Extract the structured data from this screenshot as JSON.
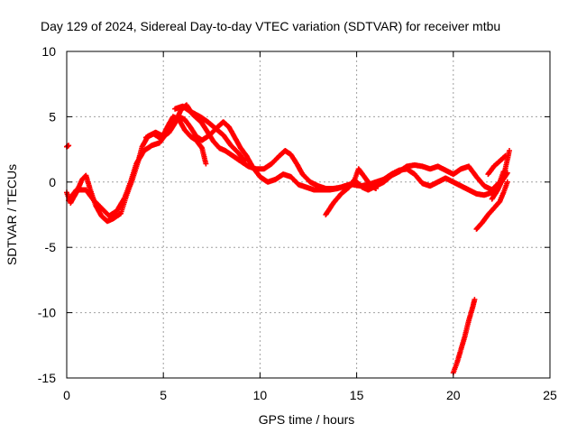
{
  "chart_data": {
    "type": "scatter",
    "title": "Day 129 of 2024, Sidereal Day-to-day VTEC variation (SDTVAR) for receiver mtbu",
    "xlabel": "GPS time / hours",
    "ylabel": "SDTVAR / TECUs",
    "xlim": [
      0,
      25
    ],
    "ylim": [
      -15,
      10
    ],
    "xticks": [
      "0",
      "5",
      "10",
      "15",
      "20",
      "25"
    ],
    "yticks": [
      "10",
      "5",
      "0",
      "-5",
      "-10",
      "-15"
    ],
    "grid": true,
    "marker": "+",
    "series": [
      {
        "name": "SDTVAR",
        "color": "#ff0000",
        "segments": [
          [
            [
              0.0,
              2.7
            ],
            [
              0.1,
              2.8
            ]
          ],
          [
            [
              0.0,
              -0.8
            ],
            [
              0.2,
              -1.6
            ],
            [
              0.5,
              -0.8
            ],
            [
              0.8,
              0.2
            ],
            [
              1.0,
              0.5
            ],
            [
              1.2,
              -0.5
            ],
            [
              1.5,
              -1.8
            ],
            [
              1.8,
              -2.6
            ],
            [
              2.1,
              -3.0
            ],
            [
              2.4,
              -2.8
            ],
            [
              2.8,
              -2.4
            ],
            [
              3.1,
              -1.0
            ],
            [
              3.4,
              0.2
            ],
            [
              3.7,
              1.6
            ],
            [
              3.9,
              2.7
            ],
            [
              4.2,
              3.5
            ],
            [
              4.6,
              3.8
            ],
            [
              5.0,
              3.5
            ],
            [
              5.3,
              3.8
            ],
            [
              5.6,
              4.5
            ],
            [
              5.9,
              5.5
            ],
            [
              6.2,
              5.9
            ],
            [
              6.5,
              5.2
            ],
            [
              6.8,
              4.8
            ],
            [
              7.0,
              4.5
            ],
            [
              7.3,
              3.8
            ],
            [
              7.6,
              3.1
            ],
            [
              7.9,
              2.6
            ],
            [
              8.2,
              2.4
            ],
            [
              8.6,
              2.0
            ],
            [
              9.0,
              1.6
            ],
            [
              9.4,
              1.2
            ],
            [
              9.8,
              1.0
            ],
            [
              10.2,
              1.0
            ],
            [
              10.6,
              1.4
            ],
            [
              11.0,
              2.0
            ],
            [
              11.3,
              2.4
            ],
            [
              11.6,
              2.1
            ],
            [
              11.9,
              1.4
            ],
            [
              12.2,
              0.6
            ],
            [
              12.6,
              0.0
            ],
            [
              13.0,
              -0.3
            ],
            [
              13.4,
              -0.5
            ],
            [
              13.8,
              -0.5
            ],
            [
              14.2,
              -0.4
            ],
            [
              14.6,
              -0.2
            ],
            [
              15.0,
              0.0
            ],
            [
              15.3,
              -0.4
            ],
            [
              15.6,
              -0.6
            ],
            [
              16.0,
              -0.3
            ],
            [
              16.4,
              0.0
            ],
            [
              16.8,
              0.5
            ],
            [
              17.2,
              0.8
            ],
            [
              17.6,
              1.2
            ],
            [
              18.0,
              1.3
            ],
            [
              18.4,
              1.2
            ],
            [
              18.8,
              1.0
            ],
            [
              19.2,
              1.2
            ],
            [
              19.6,
              0.9
            ],
            [
              20.0,
              0.6
            ],
            [
              20.4,
              1.0
            ],
            [
              20.8,
              1.2
            ],
            [
              21.2,
              0.4
            ],
            [
              21.6,
              -0.3
            ],
            [
              22.0,
              -0.6
            ],
            [
              22.4,
              0.0
            ],
            [
              22.6,
              0.8
            ]
          ],
          [
            [
              0.1,
              -1.4
            ],
            [
              0.5,
              -0.6
            ],
            [
              1.0,
              -0.6
            ],
            [
              1.4,
              -1.4
            ],
            [
              1.8,
              -2.0
            ],
            [
              2.2,
              -2.6
            ],
            [
              2.6,
              -2.2
            ],
            [
              3.0,
              -1.2
            ],
            [
              3.3,
              0.0
            ],
            [
              3.6,
              1.4
            ],
            [
              4.0,
              2.4
            ],
            [
              4.4,
              2.8
            ],
            [
              4.8,
              3.0
            ],
            [
              5.2,
              3.8
            ],
            [
              5.5,
              4.8
            ],
            [
              5.8,
              5.0
            ],
            [
              6.1,
              4.8
            ],
            [
              6.4,
              4.2
            ],
            [
              6.7,
              3.5
            ],
            [
              7.0,
              3.2
            ],
            [
              7.4,
              3.6
            ],
            [
              7.8,
              4.2
            ],
            [
              8.1,
              4.6
            ],
            [
              8.4,
              4.2
            ],
            [
              8.7,
              3.4
            ],
            [
              9.0,
              2.6
            ],
            [
              9.3,
              2.0
            ],
            [
              9.6,
              1.2
            ],
            [
              10.0,
              0.4
            ],
            [
              10.4,
              0.0
            ],
            [
              10.8,
              0.2
            ],
            [
              11.2,
              0.6
            ],
            [
              11.6,
              0.4
            ],
            [
              12.0,
              -0.2
            ],
            [
              12.4,
              -0.4
            ],
            [
              12.8,
              -0.6
            ],
            [
              13.2,
              -0.6
            ],
            [
              13.6,
              -0.6
            ],
            [
              14.0,
              -0.5
            ],
            [
              14.4,
              -0.3
            ],
            [
              14.8,
              -0.2
            ],
            [
              15.2,
              -0.3
            ],
            [
              15.6,
              -0.2
            ],
            [
              16.0,
              0.0
            ],
            [
              16.4,
              0.2
            ],
            [
              16.8,
              0.6
            ],
            [
              17.2,
              0.9
            ],
            [
              17.6,
              1.0
            ],
            [
              18.0,
              0.6
            ],
            [
              18.4,
              -0.1
            ],
            [
              18.8,
              -0.3
            ],
            [
              19.2,
              0.0
            ],
            [
              19.6,
              0.3
            ],
            [
              20.0,
              0.0
            ],
            [
              20.4,
              -0.3
            ],
            [
              20.8,
              -0.6
            ],
            [
              21.2,
              -0.9
            ],
            [
              21.6,
              -1.0
            ],
            [
              22.0,
              -0.8
            ],
            [
              22.4,
              -0.2
            ],
            [
              22.8,
              0.7
            ]
          ],
          [
            [
              4.1,
              3.4
            ],
            [
              4.5,
              3.7
            ],
            [
              4.9,
              3.3
            ],
            [
              5.2,
              4.2
            ],
            [
              5.5,
              5.0
            ],
            [
              5.8,
              4.8
            ],
            [
              6.1,
              4.0
            ],
            [
              6.4,
              3.5
            ],
            [
              6.7,
              3.2
            ],
            [
              7.0,
              2.6
            ],
            [
              7.2,
              1.4
            ]
          ],
          [
            [
              5.6,
              5.6
            ],
            [
              6.0,
              5.8
            ],
            [
              6.4,
              5.4
            ],
            [
              6.9,
              5.0
            ],
            [
              7.3,
              4.6
            ],
            [
              7.7,
              4.1
            ],
            [
              8.1,
              3.6
            ],
            [
              8.5,
              2.8
            ],
            [
              8.9,
              2.2
            ],
            [
              9.2,
              1.6
            ]
          ],
          [
            [
              13.4,
              -2.5
            ],
            [
              13.8,
              -1.6
            ],
            [
              14.2,
              -0.9
            ],
            [
              14.6,
              -0.4
            ],
            [
              14.9,
              0.2
            ],
            [
              15.1,
              1.0
            ],
            [
              15.3,
              0.6
            ],
            [
              15.7,
              -0.2
            ],
            [
              16.0,
              -0.5
            ]
          ],
          [
            [
              21.2,
              -3.6
            ],
            [
              21.5,
              -3.1
            ],
            [
              21.8,
              -2.5
            ],
            [
              22.1,
              -2.0
            ],
            [
              22.4,
              -1.5
            ],
            [
              22.6,
              -0.8
            ],
            [
              22.8,
              0.0
            ]
          ],
          [
            [
              22.0,
              -1.3
            ],
            [
              22.3,
              -0.6
            ],
            [
              22.6,
              0.4
            ],
            [
              22.9,
              2.4
            ]
          ],
          [
            [
              21.8,
              0.6
            ],
            [
              22.1,
              1.2
            ],
            [
              22.4,
              1.6
            ],
            [
              22.7,
              2.0
            ]
          ],
          [
            [
              20.0,
              -14.6
            ],
            [
              20.2,
              -13.8
            ],
            [
              20.4,
              -12.8
            ],
            [
              20.6,
              -11.8
            ],
            [
              20.8,
              -10.6
            ],
            [
              21.0,
              -9.6
            ],
            [
              21.1,
              -9.0
            ]
          ]
        ]
      }
    ]
  }
}
